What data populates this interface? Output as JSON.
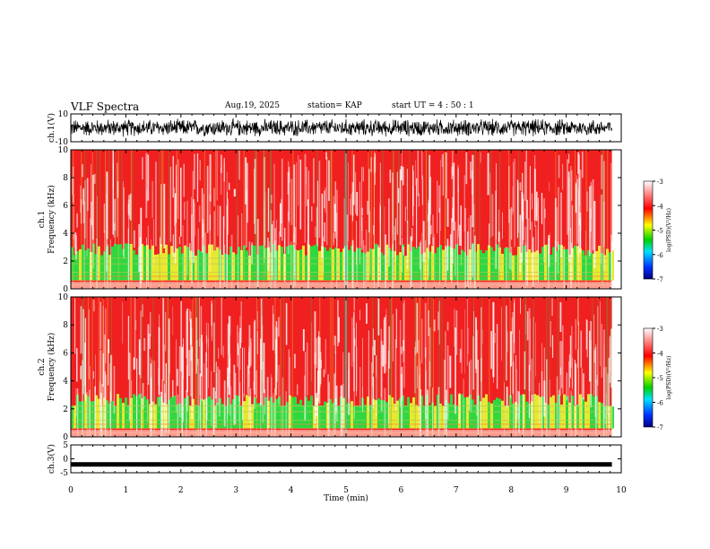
{
  "header": {
    "title": "VLF Spectra",
    "date": "Aug.19, 2025",
    "station": "station= KAP",
    "start_ut": "start  UT =   4 : 50 : 1"
  },
  "chart_data": {
    "type": "heatmap",
    "title": "VLF Spectra",
    "xlabel": "Time (min)",
    "x_ticks": [
      "0",
      "1",
      "2",
      "3",
      "4",
      "5",
      "6",
      "7",
      "8",
      "9",
      "10"
    ],
    "xlim": [
      0,
      10
    ],
    "data_end_min": 9.83,
    "panels": [
      {
        "name": "ch1-waveform",
        "type": "line",
        "ylabel": "ch.1(V)",
        "ylim": [
          -10,
          10
        ],
        "y_ticks": [
          "10",
          "-10"
        ],
        "description_range": [
          -7,
          7
        ]
      },
      {
        "name": "ch1-spectrogram",
        "type": "heatmap",
        "ylabel_top": "ch.1",
        "ylabel": "Frequency (kHz)",
        "ylim": [
          0,
          10
        ],
        "y_ticks": [
          "0",
          "2",
          "4",
          "6",
          "8",
          "10"
        ],
        "green_band_upper_khz": 3.0,
        "colorbar": {
          "label": "log(PSD)(V²/Hz)",
          "range": [
            -7,
            -3
          ],
          "ticks": [
            "-3",
            "-4",
            "-5",
            "-6",
            "-7"
          ]
        }
      },
      {
        "name": "ch2-spectrogram",
        "type": "heatmap",
        "ylabel_top": "ch.2",
        "ylabel": "Frequency (kHz)",
        "ylim": [
          0,
          10
        ],
        "y_ticks": [
          "0",
          "2",
          "4",
          "6",
          "8",
          "10"
        ],
        "green_band_upper_khz": 2.8,
        "colorbar": {
          "label": "log(PSD)(V²/Hz)",
          "range": [
            -7,
            -3
          ],
          "ticks": [
            "-3",
            "-4",
            "-5",
            "-6",
            "-7"
          ]
        }
      },
      {
        "name": "ch3-waveform",
        "type": "line",
        "ylabel": "ch.3(V)",
        "ylim": [
          -5,
          5
        ],
        "y_ticks": [
          "5",
          "0",
          "-5"
        ],
        "constant_value": -2
      }
    ]
  }
}
